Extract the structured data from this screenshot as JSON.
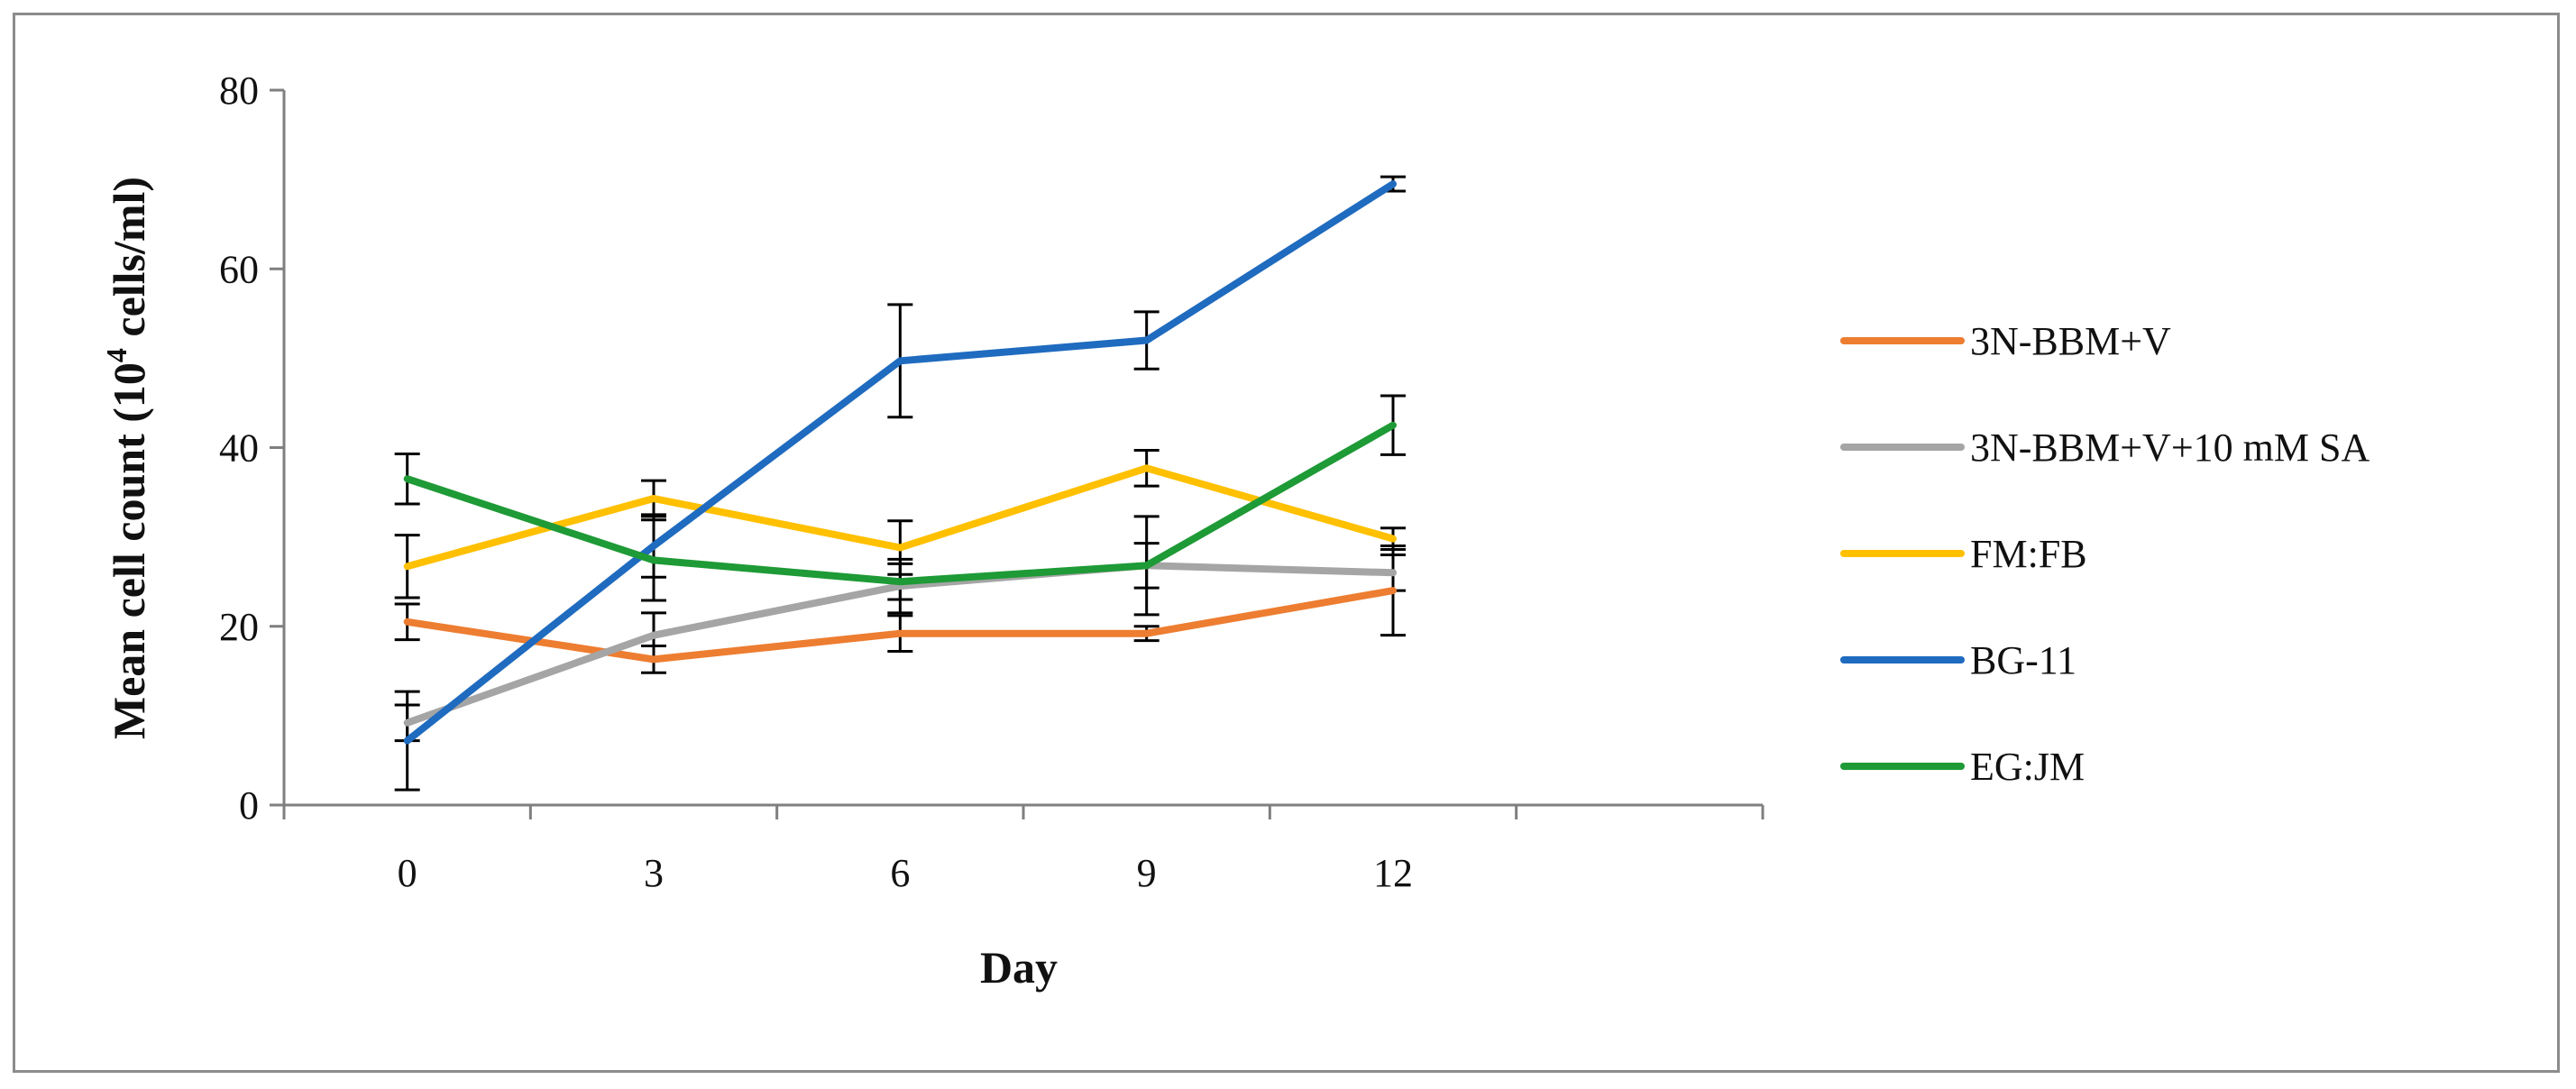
{
  "chart_data": {
    "type": "line",
    "x": [
      0,
      3,
      6,
      9,
      12
    ],
    "x_tick_labels": [
      "0",
      "3",
      "6",
      "9",
      "12"
    ],
    "y_ticks": [
      0,
      20,
      40,
      60,
      80
    ],
    "y_tick_labels": [
      "0",
      "20",
      "40",
      "60",
      "80"
    ],
    "ylim": [
      0,
      80
    ],
    "xlabel": "Day",
    "ylabel_prefix": "Mean cell count (10",
    "ylabel_superscript": "4",
    "ylabel_suffix": " cells/ml)",
    "grid": false,
    "legend_position": "right",
    "series": [
      {
        "name": "3N-BBM+V",
        "color": "#ED7D31",
        "values": [
          20.5,
          16.3,
          19.2,
          19.2,
          24.0
        ],
        "errors": [
          2.0,
          1.5,
          2.0,
          0.8,
          5.0
        ]
      },
      {
        "name": "3N-BBM+V+10 mM SA",
        "color": "#A5A5A5",
        "values": [
          9.2,
          19.0,
          24.5,
          26.8,
          26.0
        ],
        "errors": [
          2.0,
          2.5,
          3.0,
          2.5,
          2.0
        ]
      },
      {
        "name": "FM:FB",
        "color": "#FFC000",
        "values": [
          26.7,
          34.3,
          28.8,
          37.7,
          29.8
        ],
        "errors": [
          3.5,
          2.0,
          3.0,
          2.0,
          1.2
        ]
      },
      {
        "name": "BG-11",
        "color": "#1F6BBF",
        "values": [
          7.2,
          29.0,
          49.7,
          52.0,
          69.5
        ],
        "errors": [
          5.5,
          3.5,
          6.3,
          3.2,
          0.8
        ]
      },
      {
        "name": "EG:JM",
        "color": "#1E9A36",
        "values": [
          36.5,
          27.4,
          25.0,
          26.8,
          42.5
        ],
        "errors": [
          2.8,
          4.5,
          2.0,
          5.5,
          3.3
        ]
      }
    ]
  }
}
